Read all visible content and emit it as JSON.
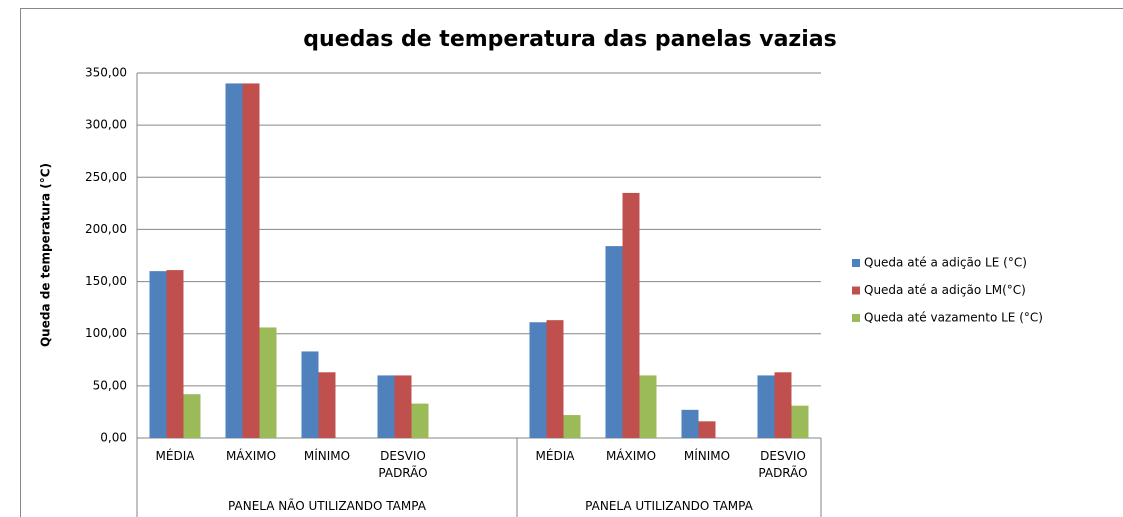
{
  "chart_data": {
    "type": "bar",
    "title": "quedas de temperatura das panelas vazias",
    "y_label": "Queda de temperatura (°C)",
    "categories": [
      "MÉDIA",
      "MÁXIMO",
      "MÍNIMO",
      "DESVIO PADRÃO",
      null,
      "MÉDIA",
      "MÁXIMO",
      "MÍNIMO",
      "DESVIO PADRÃO"
    ],
    "groups": [
      "PANELA NÃO UTILIZANDO TAMPA",
      "PANELA UTILIZANDO TAMPA"
    ],
    "series": [
      {
        "name": "Queda até a adição LE (°C)",
        "color": "#4f81bd",
        "values": [
          160,
          340,
          83,
          60,
          null,
          111,
          184,
          27,
          60
        ]
      },
      {
        "name": "Queda até a adição LM(°C)",
        "color": "#c0504d",
        "values": [
          161,
          340,
          63,
          60,
          null,
          113,
          235,
          16,
          63
        ]
      },
      {
        "name": "Queda até vazamento LE (°C)",
        "color": "#9bbb59",
        "values": [
          42,
          106,
          null,
          33,
          null,
          22,
          60,
          null,
          31
        ]
      }
    ],
    "ylim": [
      0,
      350
    ],
    "yticks": [
      {
        "value": 0,
        "label": "0,00"
      },
      {
        "value": 50,
        "label": "50,00"
      },
      {
        "value": 100,
        "label": "100,00"
      },
      {
        "value": 150,
        "label": "150,00"
      },
      {
        "value": 200,
        "label": "200,00"
      },
      {
        "value": 250,
        "label": "250,00"
      },
      {
        "value": 300,
        "label": "300,00"
      },
      {
        "value": 350,
        "label": "350,00"
      }
    ],
    "grid": true,
    "legend": "right"
  }
}
